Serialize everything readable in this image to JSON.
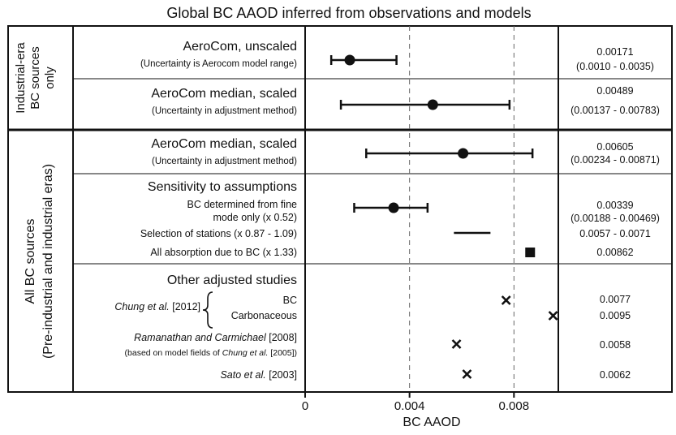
{
  "chart_data": {
    "type": "scatter",
    "title": "Global BC AAOD inferred from observations and models",
    "xlabel": "BC AAOD",
    "xlim": [
      0,
      0.0097
    ],
    "x_ticks": [
      "0",
      "0.004",
      "0.008"
    ],
    "x_tick_values": [
      0,
      0.004,
      0.008
    ],
    "gridlines_at": [
      0.004,
      0.008
    ],
    "groups": [
      {
        "label_line1": "Industrial-era",
        "label_line2": "BC sources",
        "label_line3": "only"
      },
      {
        "label_line1": "All BC sources",
        "label_line2": "(Pre-industrial and industrial eras)"
      }
    ],
    "sections": [
      {
        "title": "Sensitivity to assumptions"
      },
      {
        "title": "Other adjusted studies"
      }
    ],
    "rows": [
      {
        "label": "AeroCom, unscaled",
        "sublabel": "(Uncertainty is Aerocom model range)",
        "marker": "circle",
        "value": 0.00171,
        "low": 0.001,
        "high": 0.0035,
        "value_text": "0.00171",
        "range_text": "(0.0010 - 0.0035)"
      },
      {
        "label": "AeroCom median, scaled",
        "sublabel": "(Uncertainty in adjustment method)",
        "marker": "circle",
        "value": 0.00489,
        "low": 0.00137,
        "high": 0.00783,
        "value_text": "0.00489",
        "range_text": "(0.00137 - 0.00783)"
      },
      {
        "label": "AeroCom median, scaled",
        "sublabel": "(Uncertainty in adjustment method)",
        "marker": "circle",
        "value": 0.00605,
        "low": 0.00234,
        "high": 0.00871,
        "value_text": "0.00605",
        "range_text": "(0.00234 - 0.00871)"
      },
      {
        "label": "BC determined from fine",
        "sublabel": "mode only (x 0.52)",
        "marker": "circle",
        "value": 0.00339,
        "low": 0.00188,
        "high": 0.00469,
        "value_text": "0.00339",
        "range_text": "(0.00188 - 0.00469)"
      },
      {
        "label": "Selection of stations (x 0.87 - 1.09)",
        "marker": "none",
        "low": 0.0057,
        "high": 0.0071,
        "value_text": "0.0057 - 0.0071"
      },
      {
        "label": "All absorption due to BC (x 1.33)",
        "marker": "square",
        "value": 0.00862,
        "value_text": "0.00862"
      },
      {
        "label": "BC",
        "marker": "x",
        "value": 0.0077,
        "value_text": "0.0077"
      },
      {
        "label": "Carbonaceous",
        "marker": "x",
        "value": 0.0095,
        "value_text": "0.0095"
      },
      {
        "label_italic": "Ramanathan and Carmichael",
        "label_rest": " [2008]",
        "sublabel_pre": "(based on model fields of ",
        "sublabel_italic": "Chung et al.",
        "sublabel_post": " [2005])",
        "marker": "x",
        "value": 0.0058,
        "value_text": "0.0058"
      },
      {
        "label_italic": "Sato et al.",
        "label_rest": " [2003]",
        "marker": "x",
        "value": 0.0062,
        "value_text": "0.0062"
      }
    ],
    "chung_label_italic": "Chung et al.",
    "chung_label_rest": " [2012]"
  }
}
